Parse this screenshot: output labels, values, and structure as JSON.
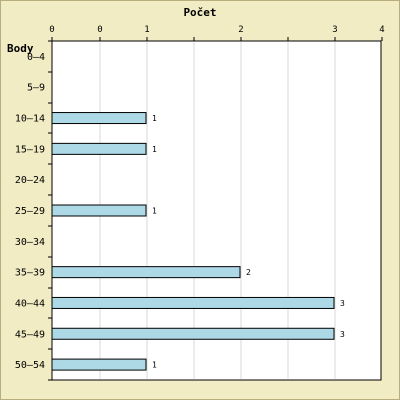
{
  "chart_data": {
    "type": "bar",
    "orientation": "horizontal",
    "title": "Počet",
    "ylabel": "Body",
    "x_ticks": [
      "0",
      "0",
      "1",
      "2",
      "3",
      "4"
    ],
    "xlim": [
      0,
      4
    ],
    "categories": [
      "0–4",
      "5–9",
      "10–14",
      "15–19",
      "20–24",
      "25–29",
      "30–34",
      "35–39",
      "40–44",
      "45–49",
      "50–54"
    ],
    "values": [
      0,
      0,
      1,
      1,
      0,
      1,
      0,
      2,
      3,
      3,
      1
    ],
    "data_labels": [
      "",
      "",
      "1",
      "1",
      "",
      "1",
      "",
      "2",
      "3",
      "3",
      "1"
    ],
    "grid": true,
    "colors": {
      "background": "#f1ecc4",
      "plot_background": "#ffffff",
      "bar_fill": "#add8e6",
      "bar_stroke": "#000000",
      "grid": "#d9d9d9"
    }
  }
}
